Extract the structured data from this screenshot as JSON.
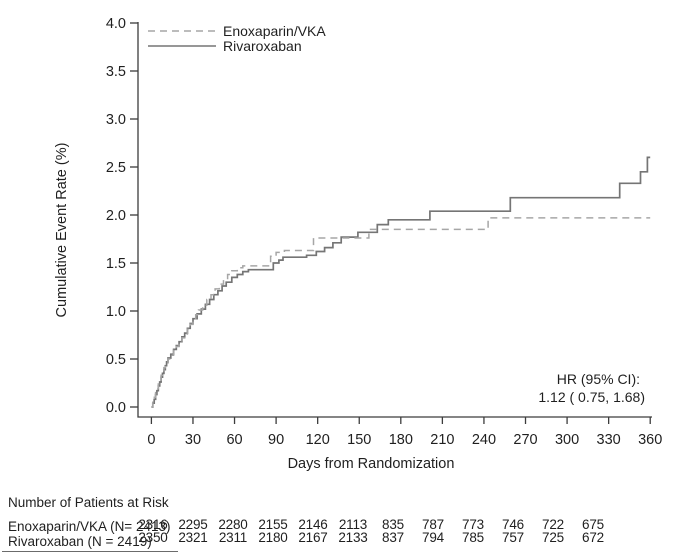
{
  "chart_data": {
    "type": "line",
    "subtype": "kaplan-meier-cumulative-step",
    "title": "",
    "xlabel": "Days from Randomization",
    "ylabel": "Cumulative Event Rate (%)",
    "xlim": [
      0,
      360
    ],
    "ylim": [
      0.0,
      4.0
    ],
    "xticks": [
      0,
      30,
      60,
      90,
      120,
      150,
      180,
      210,
      240,
      270,
      300,
      330,
      360
    ],
    "yticks": [
      "0.0",
      "0.5",
      "1.0",
      "1.5",
      "2.0",
      "2.5",
      "3.0",
      "3.5",
      "4.0"
    ],
    "grid": false,
    "legend_position": "top-left-inside",
    "series": [
      {
        "name": "Enoxaparin/VKA",
        "style": "dashed",
        "color": "#a6a6a6",
        "points": [
          [
            0,
            0
          ],
          [
            1,
            0.05
          ],
          [
            2,
            0.1
          ],
          [
            3,
            0.15
          ],
          [
            4,
            0.19
          ],
          [
            5,
            0.24
          ],
          [
            6,
            0.28
          ],
          [
            7,
            0.33
          ],
          [
            8,
            0.37
          ],
          [
            9,
            0.41
          ],
          [
            10,
            0.45
          ],
          [
            12,
            0.5
          ],
          [
            14,
            0.54
          ],
          [
            16,
            0.59
          ],
          [
            18,
            0.63
          ],
          [
            20,
            0.67
          ],
          [
            22,
            0.72
          ],
          [
            24,
            0.76
          ],
          [
            26,
            0.81
          ],
          [
            28,
            0.86
          ],
          [
            30,
            0.91
          ],
          [
            32,
            0.96
          ],
          [
            34,
            1.01
          ],
          [
            37,
            1.06
          ],
          [
            40,
            1.12
          ],
          [
            43,
            1.17
          ],
          [
            46,
            1.23
          ],
          [
            49,
            1.28
          ],
          [
            52,
            1.33
          ],
          [
            55,
            1.38
          ],
          [
            58,
            1.42
          ],
          [
            62,
            1.45
          ],
          [
            66,
            1.47
          ],
          [
            86,
            1.57
          ],
          [
            90,
            1.61
          ],
          [
            96,
            1.63
          ],
          [
            117,
            1.76
          ],
          [
            157,
            1.85
          ],
          [
            243,
            1.97
          ],
          [
            360,
            1.97
          ]
        ]
      },
      {
        "name": "Rivaroxaban",
        "style": "solid",
        "color": "#757575",
        "points": [
          [
            0,
            0
          ],
          [
            1,
            0.04
          ],
          [
            2,
            0.08
          ],
          [
            3,
            0.13
          ],
          [
            4,
            0.17
          ],
          [
            5,
            0.22
          ],
          [
            6,
            0.26
          ],
          [
            7,
            0.31
          ],
          [
            8,
            0.35
          ],
          [
            9,
            0.39
          ],
          [
            10,
            0.43
          ],
          [
            11,
            0.47
          ],
          [
            12,
            0.51
          ],
          [
            14,
            0.55
          ],
          [
            16,
            0.6
          ],
          [
            18,
            0.64
          ],
          [
            20,
            0.68
          ],
          [
            22,
            0.73
          ],
          [
            24,
            0.77
          ],
          [
            26,
            0.82
          ],
          [
            28,
            0.87
          ],
          [
            30,
            0.92
          ],
          [
            33,
            0.97
          ],
          [
            36,
            1.02
          ],
          [
            39,
            1.07
          ],
          [
            42,
            1.12
          ],
          [
            45,
            1.17
          ],
          [
            48,
            1.21
          ],
          [
            51,
            1.26
          ],
          [
            54,
            1.3
          ],
          [
            58,
            1.35
          ],
          [
            62,
            1.38
          ],
          [
            66,
            1.41
          ],
          [
            70,
            1.43
          ],
          [
            88,
            1.5
          ],
          [
            92,
            1.53
          ],
          [
            95,
            1.56
          ],
          [
            112,
            1.58
          ],
          [
            119,
            1.62
          ],
          [
            125,
            1.66
          ],
          [
            131,
            1.71
          ],
          [
            137,
            1.77
          ],
          [
            149,
            1.82
          ],
          [
            163,
            1.9
          ],
          [
            171,
            1.95
          ],
          [
            201,
            2.04
          ],
          [
            259,
            2.18
          ],
          [
            338,
            2.33
          ],
          [
            353,
            2.45
          ],
          [
            358,
            2.6
          ],
          [
            360,
            2.6
          ]
        ]
      }
    ],
    "annotation": "HR (95% CI): 1.12 ( 0.75,  1.68)"
  },
  "annotation": {
    "line1": "HR (95% CI):",
    "line2": "1.12 ( 0.75,  1.68)"
  },
  "risk_table": {
    "title": "Number of Patients at Risk",
    "rows": [
      {
        "label": "Enoxaparin/VKA (N= 2413)",
        "values": [
          "2316",
          "2295",
          "2280",
          "2155",
          "2146",
          "2113",
          "835",
          "787",
          "773",
          "746",
          "722",
          "675"
        ]
      },
      {
        "label": "Rivaroxaban (N = 2419)",
        "values": [
          "2350",
          "2321",
          "2311",
          "2180",
          "2167",
          "2133",
          "837",
          "794",
          "785",
          "757",
          "725",
          "672"
        ]
      }
    ]
  },
  "colors": {
    "axis": "#3c3c3c",
    "text": "#1f1f1f"
  }
}
